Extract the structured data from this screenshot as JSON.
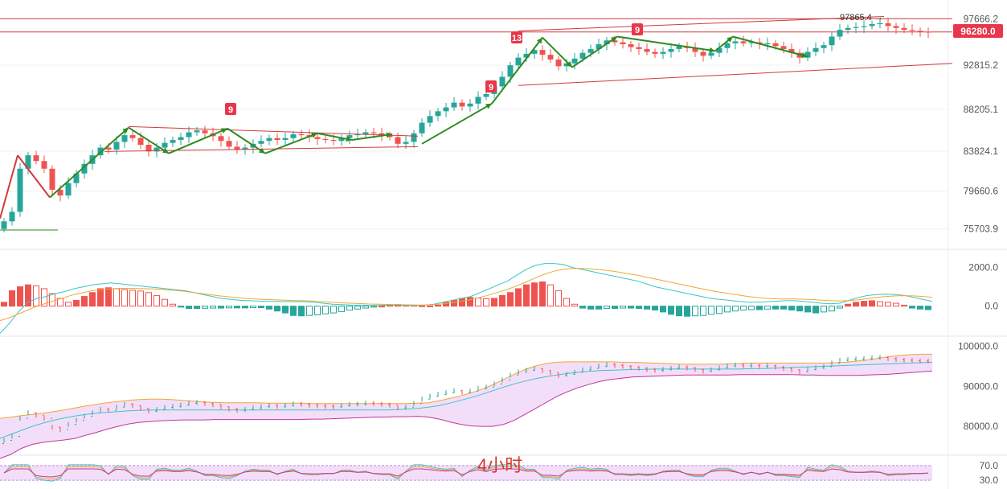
{
  "chart_data": [
    {
      "type": "candlestick",
      "panel": "price",
      "yaxis_ticks": [
        97666.2,
        92815.2,
        88205.1,
        83824.1,
        79660.6,
        75703.9
      ],
      "ylim": [
        74000,
        99200
      ],
      "current_price_label": "96280.0",
      "current_price": 96280.0,
      "horizontal_lines": [
        97666.2,
        96280.0
      ],
      "peak_annotation": "97865.4 →",
      "peak_value": 97865.4,
      "td_sequential_labels": [
        "9",
        "9",
        "13",
        "9"
      ],
      "colors": {
        "up": "#26a69a",
        "down": "#ef5350",
        "trendline": "#d23a3a",
        "wave_arrow": "#2e8b20"
      },
      "close_path_approx": [
        76500,
        77500,
        82000,
        83400,
        82800,
        82000,
        79800,
        79200,
        80500,
        81500,
        82500,
        83400,
        84200,
        84000,
        84800,
        85500,
        85200,
        84500,
        83800,
        84200,
        84700,
        85000,
        85300,
        85800,
        86000,
        85700,
        85400,
        84900,
        84300,
        84000,
        84200,
        84600,
        84900,
        85200,
        85000,
        85200,
        85600,
        85500,
        85300,
        85100,
        85000,
        84900,
        85200,
        85500,
        85600,
        85800,
        85700,
        85500,
        85300,
        84600,
        84800,
        85700,
        86800,
        87500,
        88000,
        88400,
        88900,
        88500,
        88800,
        89500,
        89800,
        90600,
        91600,
        92800,
        93600,
        94000,
        94400,
        93900,
        93400,
        92700,
        93000,
        93500,
        94100,
        94500,
        95000,
        95400,
        95200,
        95000,
        94700,
        94500,
        94200,
        94000,
        94200,
        94500,
        94800,
        94600,
        94200,
        93800,
        94100,
        94600,
        95100,
        95300,
        95100,
        95200,
        95000,
        95100,
        94800,
        94500,
        94100,
        93600,
        94200,
        94600,
        94900,
        95800,
        96500,
        96700,
        96800,
        96900,
        97100,
        97200,
        96900,
        96700,
        96500,
        96400,
        96300,
        96280
      ]
    },
    {
      "type": "macd",
      "panel": "macd",
      "yaxis_ticks": [
        2000.0,
        0.0
      ],
      "ylim": [
        -1550,
        2600
      ],
      "histogram_approx": [
        200,
        800,
        1000,
        1100,
        1050,
        900,
        650,
        400,
        200,
        300,
        500,
        700,
        900,
        950,
        900,
        850,
        820,
        780,
        700,
        550,
        350,
        100,
        -50,
        -120,
        -120,
        -110,
        -100,
        -100,
        -90,
        -90,
        -90,
        -80,
        -80,
        -150,
        -250,
        -350,
        -480,
        -500,
        -480,
        -450,
        -400,
        -350,
        -280,
        -200,
        -150,
        -100,
        -50,
        0,
        50,
        80,
        60,
        50,
        20,
        10,
        50,
        200,
        300,
        400,
        450,
        420,
        380,
        400,
        550,
        700,
        900,
        1100,
        1200,
        1250,
        1100,
        800,
        400,
        100,
        -100,
        -150,
        -150,
        -120,
        -120,
        -100,
        -100,
        -120,
        -150,
        -200,
        -300,
        -420,
        -500,
        -520,
        -500,
        -480,
        -420,
        -380,
        -300,
        -250,
        -200,
        -180,
        -180,
        -150,
        -150,
        -150,
        -200,
        -250,
        -300,
        -350,
        -300,
        -250,
        -100,
        100,
        200,
        250,
        280,
        230,
        200,
        150,
        50,
        -100,
        -150,
        -180
      ],
      "macd_line_approx": [
        -1400,
        -900,
        -300,
        200,
        400,
        500,
        650,
        750,
        900,
        1000,
        1100,
        1150,
        1200,
        1150,
        1100,
        1050,
        1000,
        950,
        900,
        850,
        800,
        700,
        600,
        500,
        400,
        350,
        300,
        280,
        260,
        250,
        240,
        230,
        230,
        220,
        200,
        150,
        100,
        80,
        60,
        50,
        40,
        40,
        50,
        50,
        40,
        30,
        50,
        100,
        200,
        300,
        400,
        500,
        700,
        900,
        1100,
        1300,
        1600,
        1900,
        2100,
        2200,
        2200,
        2150,
        2000,
        1900,
        1800,
        1700,
        1600,
        1500,
        1400,
        1300,
        1150,
        1000,
        900,
        800,
        700,
        600,
        500,
        400,
        350,
        300,
        250,
        200,
        200,
        220,
        250,
        280,
        280,
        250,
        200,
        150,
        120,
        150,
        300,
        450,
        550,
        600,
        620,
        600,
        550,
        450,
        350,
        250
      ],
      "signal_line_approx": [
        -750,
        -600,
        -400,
        -200,
        0,
        150,
        300,
        450,
        600,
        700,
        800,
        850,
        900,
        920,
        920,
        910,
        900,
        880,
        850,
        810,
        760,
        700,
        640,
        580,
        520,
        470,
        420,
        390,
        360,
        340,
        320,
        300,
        290,
        280,
        260,
        230,
        200,
        170,
        150,
        130,
        110,
        100,
        90,
        80,
        70,
        60,
        60,
        80,
        120,
        180,
        250,
        340,
        450,
        580,
        720,
        870,
        1050,
        1250,
        1450,
        1650,
        1800,
        1900,
        1950,
        1950,
        1920,
        1880,
        1830,
        1760,
        1680,
        1600,
        1500,
        1400,
        1300,
        1200,
        1100,
        1000,
        900,
        800,
        720,
        650,
        580,
        500,
        450,
        400,
        380,
        370,
        370,
        360,
        340,
        310,
        280,
        270,
        290,
        330,
        390,
        450,
        500,
        530,
        540,
        530,
        500,
        460
      ]
    },
    {
      "type": "bollinger",
      "panel": "boll",
      "yaxis_ticks": [
        100000.0,
        90000.0,
        80000.0
      ],
      "ylim": [
        74000,
        102500
      ],
      "upper_approx": [
        82000,
        82300,
        82700,
        83000,
        83300,
        83700,
        84100,
        84600,
        85100,
        85500,
        85900,
        86200,
        86500,
        86700,
        86800,
        86800,
        86700,
        86500,
        86300,
        86100,
        86000,
        85900,
        85900,
        85900,
        85900,
        85800,
        85800,
        85800,
        85800,
        85700,
        85700,
        85700,
        85700,
        85700,
        85700,
        85700,
        85700,
        85700,
        85700,
        85800,
        85900,
        86400,
        87000,
        87600,
        88400,
        89300,
        90400,
        91700,
        93000,
        94200,
        95100,
        95700,
        96000,
        96100,
        96100,
        96100,
        96100,
        96100,
        96000,
        96000,
        95900,
        95800,
        95700,
        95600,
        95500,
        95500,
        95500,
        95500,
        95600,
        95700,
        95800,
        95800,
        95800,
        95800,
        95800,
        95800,
        95800,
        95800,
        95900,
        96000,
        96300,
        96600,
        97000,
        97400,
        97700,
        97900,
        98000,
        98000
      ],
      "middle_approx": [
        77000,
        78000,
        79000,
        80000,
        80800,
        81500,
        82100,
        82600,
        83000,
        83300,
        83500,
        83700,
        83900,
        84000,
        84100,
        84100,
        84100,
        84100,
        84100,
        84100,
        84100,
        84100,
        84100,
        84100,
        84100,
        84100,
        84100,
        84100,
        84100,
        84100,
        84100,
        84100,
        84100,
        84100,
        84100,
        84100,
        84100,
        84200,
        84300,
        84500,
        84800,
        85200,
        85800,
        86500,
        87200,
        88000,
        88900,
        89800,
        90600,
        91300,
        91900,
        92400,
        92800,
        93200,
        93500,
        93700,
        93900,
        94000,
        94100,
        94200,
        94200,
        94300,
        94300,
        94300,
        94300,
        94300,
        94300,
        94300,
        94300,
        94300,
        94400,
        94400,
        94500,
        94600,
        94700,
        94800,
        94900,
        95000,
        95100,
        95200,
        95300,
        95400,
        95500,
        95600,
        95700,
        95800,
        95900,
        96000
      ],
      "lower_approx": [
        72000,
        73000,
        74500,
        75500,
        76000,
        76300,
        76600,
        77000,
        77800,
        78500,
        79300,
        80000,
        80600,
        81000,
        81200,
        81400,
        81500,
        81600,
        81600,
        81600,
        81700,
        81700,
        81700,
        81700,
        81700,
        81700,
        81700,
        81700,
        81700,
        81800,
        81800,
        81900,
        82000,
        82100,
        82200,
        82300,
        82300,
        82400,
        82400,
        82500,
        82300,
        81800,
        81100,
        80500,
        80100,
        80000,
        80000,
        80500,
        81500,
        83000,
        84500,
        86000,
        87500,
        88700,
        89700,
        90500,
        91200,
        91700,
        92000,
        92300,
        92400,
        92500,
        92600,
        92700,
        92800,
        92800,
        92800,
        92800,
        92800,
        92900,
        92900,
        92900,
        92900,
        92900,
        92900,
        92800,
        92800,
        92700,
        92700,
        92700,
        92700,
        92800,
        92900,
        93000,
        93200,
        93400,
        93600,
        93800
      ]
    },
    {
      "type": "oscillator",
      "panel": "rsi",
      "yaxis_ticks": [
        70.0,
        30.0
      ],
      "ylim": [
        15,
        85
      ],
      "watermark_text": "4小时"
    }
  ]
}
